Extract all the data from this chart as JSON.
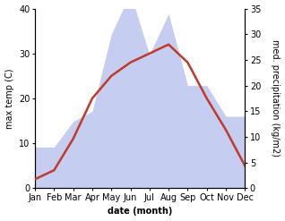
{
  "months": [
    "Jan",
    "Feb",
    "Mar",
    "Apr",
    "May",
    "Jun",
    "Jul",
    "Aug",
    "Sep",
    "Oct",
    "Nov",
    "Dec"
  ],
  "month_indices": [
    0,
    1,
    2,
    3,
    4,
    5,
    6,
    7,
    8,
    9,
    10,
    11
  ],
  "temp": [
    2,
    4,
    11,
    20,
    25,
    28,
    30,
    32,
    28,
    20,
    13,
    5
  ],
  "precip": [
    8,
    8,
    13,
    15,
    30,
    38,
    26,
    34,
    20,
    20,
    14,
    14
  ],
  "temp_color": "#c0392b",
  "precip_fill_color": "#c5cdf0",
  "precip_edge_color": "#9aa8dc",
  "temp_ylim": [
    0,
    40
  ],
  "precip_ylim": [
    0,
    35
  ],
  "temp_yticks": [
    0,
    10,
    20,
    30,
    40
  ],
  "precip_yticks": [
    0,
    5,
    10,
    15,
    20,
    25,
    30,
    35
  ],
  "ylabel_left": "max temp (C)",
  "ylabel_right": "med. precipitation (kg/m2)",
  "xlabel": "date (month)",
  "bg_color": "#ffffff",
  "temp_linewidth": 1.8,
  "font_size": 7.0
}
